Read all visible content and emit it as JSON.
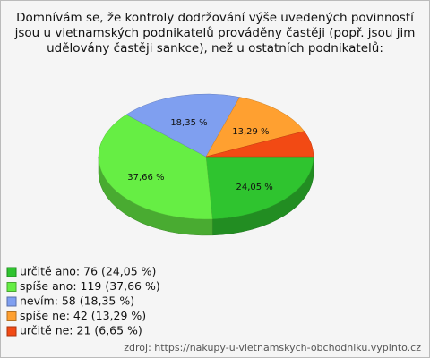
{
  "chart_data": {
    "type": "pie3d",
    "title_lines": [
      "Domnívám se, že kontroly dodržování výše uvedených povinností",
      "jsou u vietnamských podnikatelů prováděny častěji (popř. jsou jim",
      "udělovány častěji sankce), než u ostatních podnikatelů:"
    ],
    "values": [
      24.05,
      37.66,
      18.35,
      13.29,
      6.65
    ],
    "value_labels": [
      "24,05 %",
      "37,66 %",
      "18,35 %",
      "13,29 %",
      null
    ],
    "legend_labels": [
      "určitě ano: 76 (24,05 %)",
      "spíše ano: 119 (37,66 %)",
      "nevím: 58 (18,35 %)",
      "spíše ne: 42 (13,29 %)",
      "určitě ne: 21 (6,65 %)"
    ],
    "colors": [
      "#2fc42f",
      "#66ee44",
      "#7f9ff0",
      "#ffa030",
      "#f24a14"
    ],
    "source": "zdroj: https://nakupy-u-vietnamskych-obchodniku.vyplnto.cz"
  }
}
